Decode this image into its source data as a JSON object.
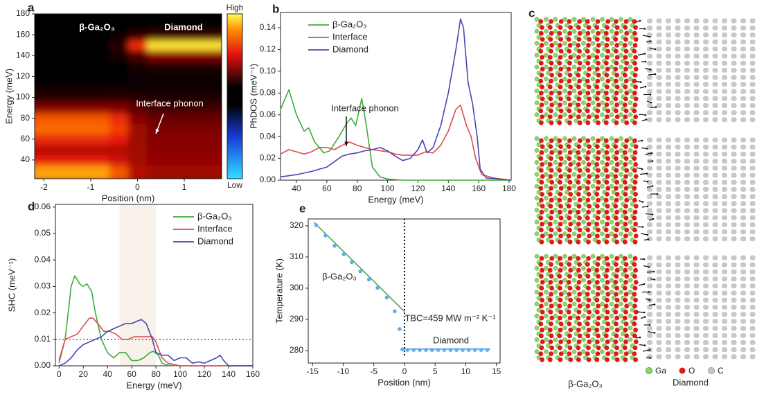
{
  "chart_data": [
    {
      "type": "heatmap",
      "label": "a",
      "xlabel": "Position (nm)",
      "ylabel": "Energy (meV)",
      "xlim": [
        -2.2,
        1.8
      ],
      "ylim": [
        22,
        180
      ],
      "xticks": [
        -2,
        -1,
        0,
        1
      ],
      "yticks": [
        40,
        60,
        80,
        100,
        120,
        140,
        160,
        180
      ],
      "x": [
        -2.0,
        -1.6,
        -1.2,
        -0.8,
        -0.4,
        0,
        0.4,
        0.8,
        1.2,
        1.6
      ],
      "y": [
        30,
        40,
        50,
        60,
        70,
        80,
        90,
        100,
        110,
        120,
        130,
        140,
        150,
        160,
        170
      ],
      "z": [
        [
          0.85,
          0.85,
          0.85,
          0.85,
          0.7,
          0.45,
          0.4,
          0.4,
          0.4,
          0.4
        ],
        [
          0.55,
          0.55,
          0.55,
          0.55,
          0.5,
          0.4,
          0.38,
          0.38,
          0.38,
          0.38
        ],
        [
          0.45,
          0.45,
          0.45,
          0.45,
          0.45,
          0.4,
          0.36,
          0.36,
          0.36,
          0.36
        ],
        [
          0.6,
          0.6,
          0.6,
          0.6,
          0.55,
          0.4,
          0.35,
          0.35,
          0.35,
          0.35
        ],
        [
          0.75,
          0.75,
          0.75,
          0.75,
          0.65,
          0.4,
          0.33,
          0.33,
          0.33,
          0.33
        ],
        [
          0.7,
          0.7,
          0.7,
          0.7,
          0.6,
          0.35,
          0.28,
          0.28,
          0.28,
          0.28
        ],
        [
          0.35,
          0.35,
          0.35,
          0.35,
          0.35,
          0.25,
          0.18,
          0.18,
          0.18,
          0.18
        ],
        [
          0.1,
          0.1,
          0.1,
          0.1,
          0.12,
          0.1,
          0.08,
          0.08,
          0.08,
          0.08
        ],
        [
          0.02,
          0.02,
          0.02,
          0.02,
          0.03,
          0.03,
          0.03,
          0.03,
          0.03,
          0.03
        ],
        [
          0,
          0,
          0,
          0,
          0,
          0.02,
          0.03,
          0.03,
          0.03,
          0.03
        ],
        [
          0,
          0,
          0,
          0,
          0,
          0.05,
          0.08,
          0.08,
          0.08,
          0.08
        ],
        [
          0,
          0,
          0,
          0,
          0.05,
          0.2,
          0.35,
          0.35,
          0.35,
          0.35
        ],
        [
          0,
          0,
          0,
          0,
          0.1,
          0.6,
          0.95,
          0.95,
          0.95,
          0.95
        ],
        [
          0,
          0,
          0,
          0,
          0.02,
          0.1,
          0.15,
          0.15,
          0.15,
          0.15
        ],
        [
          0,
          0,
          0,
          0,
          0,
          0,
          0,
          0,
          0,
          0
        ]
      ],
      "colorbar": {
        "high": "High",
        "low": "Low"
      },
      "annotations": [
        "β-Ga₂O₃",
        "Diamond",
        "Interface phonon"
      ]
    },
    {
      "type": "line",
      "label": "b",
      "xlabel": "Energy (meV)",
      "ylabel": "PhDOS (meV⁻¹)",
      "xlim": [
        29.5,
        181.4
      ],
      "ylim": [
        0,
        0.154
      ],
      "xticks": [
        40,
        60,
        80,
        100,
        120,
        140,
        160,
        180
      ],
      "yticks": [
        {
          "value": 0,
          "label": "0.00"
        },
        {
          "value": 0.02,
          "label": "0.02"
        },
        {
          "value": 0.04,
          "label": "0.04"
        },
        {
          "value": 0.06,
          "label": "0.06"
        },
        {
          "value": 0.08,
          "label": "0.08"
        },
        {
          "value": 0.1,
          "label": "0.10"
        },
        {
          "value": 0.12,
          "label": "0.12"
        },
        {
          "value": 0.14,
          "label": "0.14"
        }
      ],
      "legend": "upper left",
      "series": [
        {
          "name": "β-Ga₂O₃",
          "color": "#3aad3a",
          "x": [
            29.5,
            35,
            40,
            45,
            48,
            52,
            58,
            62,
            68,
            73,
            76,
            79,
            83,
            86,
            90,
            95,
            100,
            110,
            181
          ],
          "values": [
            0.065,
            0.083,
            0.06,
            0.045,
            0.048,
            0.035,
            0.025,
            0.027,
            0.04,
            0.052,
            0.057,
            0.05,
            0.075,
            0.05,
            0.012,
            0.003,
            0.001,
            0,
            0
          ]
        },
        {
          "name": "Interface",
          "color": "#e0474c",
          "x": [
            29.5,
            35,
            40,
            45,
            50,
            55,
            60,
            65,
            70,
            75,
            80,
            85,
            90,
            95,
            100,
            105,
            110,
            115,
            120,
            125,
            130,
            135,
            140,
            145,
            148,
            152,
            155,
            158,
            162,
            170,
            181
          ],
          "values": [
            0.024,
            0.028,
            0.026,
            0.024,
            0.026,
            0.03,
            0.03,
            0.028,
            0.032,
            0.035,
            0.032,
            0.03,
            0.028,
            0.027,
            0.026,
            0.024,
            0.023,
            0.023,
            0.023,
            0.026,
            0.025,
            0.032,
            0.045,
            0.065,
            0.069,
            0.05,
            0.04,
            0.02,
            0.005,
            0.002,
            0
          ]
        },
        {
          "name": "Diamond",
          "color": "#4545b5",
          "x": [
            29.5,
            40,
            50,
            60,
            65,
            70,
            75,
            80,
            85,
            90,
            95,
            100,
            105,
            110,
            115,
            120,
            123,
            126,
            130,
            135,
            140,
            145,
            148,
            150,
            153,
            156,
            159,
            161,
            165,
            181
          ],
          "values": [
            0.003,
            0.005,
            0.008,
            0.012,
            0.017,
            0.022,
            0.024,
            0.025,
            0.027,
            0.028,
            0.03,
            0.027,
            0.022,
            0.018,
            0.02,
            0.028,
            0.037,
            0.025,
            0.03,
            0.05,
            0.08,
            0.12,
            0.148,
            0.14,
            0.09,
            0.07,
            0.04,
            0.01,
            0.002,
            0
          ]
        }
      ],
      "annotations": [
        "Interface phonon"
      ]
    },
    {
      "type": "line",
      "label": "d",
      "xlabel": "Energy (meV)",
      "ylabel": "SHC (meV⁻¹)",
      "xlim": [
        -3,
        160
      ],
      "ylim": [
        0,
        0.061
      ],
      "xticks": [
        0,
        20,
        40,
        60,
        80,
        100,
        120,
        140,
        160
      ],
      "yticks": [
        {
          "value": 0,
          "label": "0.00"
        },
        {
          "value": 0.01,
          "label": "0.01"
        },
        {
          "value": 0.02,
          "label": "0.02"
        },
        {
          "value": 0.03,
          "label": "0.03"
        },
        {
          "value": 0.04,
          "label": "0.04"
        },
        {
          "value": 0.05,
          "label": "0.05"
        },
        {
          "value": 0.06,
          "label": "0.06"
        }
      ],
      "legend": "upper right",
      "shade": [
        50,
        80
      ],
      "hline": 0.01,
      "series": [
        {
          "name": "β-Ga₂O₃",
          "color": "#3aad3a",
          "x": [
            0,
            5,
            10,
            13,
            17,
            20,
            23,
            27,
            30,
            35,
            40,
            45,
            50,
            55,
            60,
            65,
            70,
            75,
            78,
            82,
            85,
            90,
            100,
            160
          ],
          "values": [
            0.001,
            0.01,
            0.03,
            0.034,
            0.031,
            0.03,
            0.031,
            0.028,
            0.02,
            0.01,
            0.005,
            0.003,
            0.005,
            0.005,
            0.002,
            0.002,
            0.003,
            0.005,
            0.0055,
            0.004,
            0.001,
            0.0002,
            0,
            0
          ]
        },
        {
          "name": "Interface",
          "color": "#e0474c",
          "x": [
            0,
            5,
            10,
            15,
            20,
            25,
            28,
            32,
            37,
            42,
            47,
            52,
            57,
            62,
            67,
            72,
            77,
            80,
            85,
            90,
            100,
            160
          ],
          "values": [
            0.002,
            0.01,
            0.011,
            0.012,
            0.015,
            0.018,
            0.018,
            0.016,
            0.013,
            0.013,
            0.012,
            0.01,
            0.01,
            0.011,
            0.011,
            0.011,
            0.011,
            0.009,
            0.003,
            0.001,
            0,
            0
          ]
        },
        {
          "name": "Diamond",
          "color": "#4545b5",
          "x": [
            0,
            5,
            10,
            15,
            20,
            25,
            30,
            35,
            40,
            45,
            50,
            55,
            60,
            65,
            68,
            72,
            77,
            80,
            85,
            90,
            95,
            100,
            105,
            110,
            115,
            120,
            125,
            130,
            133,
            136,
            140,
            160
          ],
          "values": [
            0,
            0.001,
            0.003,
            0.006,
            0.008,
            0.009,
            0.01,
            0.011,
            0.013,
            0.014,
            0.015,
            0.016,
            0.016,
            0.017,
            0.0175,
            0.016,
            0.01,
            0.005,
            0.004,
            0.004,
            0.002,
            0.003,
            0.003,
            0.001,
            0.0015,
            0.001,
            0.002,
            0.003,
            0.004,
            0.002,
            0,
            0
          ]
        }
      ]
    },
    {
      "type": "scatter",
      "label": "e",
      "xlabel": "Position (nm)",
      "ylabel": "Temperature (K)",
      "xlim": [
        -15.7,
        15.6
      ],
      "ylim": [
        276,
        322.2
      ],
      "xticks": [
        -15,
        -10,
        -5,
        0,
        5,
        10,
        15
      ],
      "yticks": [
        280,
        290,
        300,
        310,
        320
      ],
      "series": [
        {
          "color": "#5aaef0",
          "x": [
            -14.4,
            -12.9,
            -11.4,
            -9.9,
            -8.6,
            -7.2,
            -5.8,
            -4.4,
            -2.9,
            -1.6,
            -0.8,
            -0.35
          ],
          "values": [
            320.2,
            316.9,
            313.6,
            310.9,
            308.3,
            305.4,
            302.8,
            300.1,
            297.0,
            292.6,
            286.9,
            280.4
          ]
        },
        {
          "color": "#5aaef0",
          "x": [
            0.5,
            1.5,
            2.5,
            3.5,
            4.5,
            5.5,
            6.5,
            7.5,
            8.5,
            9.5,
            10.5,
            11.5,
            12.5,
            13.5
          ],
          "values": [
            280.2,
            280.2,
            280.2,
            280.2,
            280.2,
            280.2,
            280.2,
            280.2,
            280.2,
            280.2,
            280.2,
            280.2,
            280.2,
            280.2
          ]
        }
      ],
      "fits": [
        {
          "color": "#4aa04a",
          "x": [
            -14.8,
            0
          ],
          "values": [
            321.2,
            292.5
          ]
        },
        {
          "color": "#4a7fd0",
          "x": [
            0,
            14
          ],
          "values": [
            280.5,
            280.5
          ]
        }
      ],
      "vline": 0,
      "annotations": [
        "β-Ga₂O₃",
        "TBC=459 MW m⁻² K⁻¹",
        "Diamond"
      ]
    }
  ],
  "structure": {
    "label": "c",
    "legend": [
      "Ga",
      "O",
      "C"
    ],
    "left_label": "β-Ga₂O₃",
    "right_label": "Diamond"
  }
}
